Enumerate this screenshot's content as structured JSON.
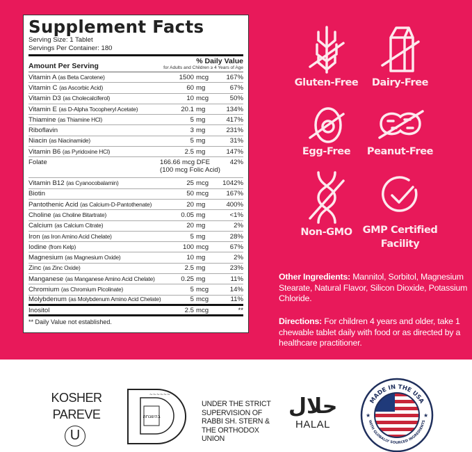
{
  "label": {
    "title": "Supplement Facts",
    "serving_size": "Serving Size: 1 Tablet",
    "servings_per_container": "Servings Per Container: 180",
    "amount_header": "Amount Per Serving",
    "dv_header": "% Daily Value",
    "dv_sub": "for Adults and Children ≥ 4 Years of Age",
    "rows": [
      {
        "name": "Vitamin A",
        "source": "(as Beta Carotene)",
        "amount": "1500",
        "unit": "mcg",
        "dv": "167%"
      },
      {
        "name": "Vitamin C",
        "source": "(as Ascorbic Acid)",
        "amount": "60",
        "unit": "mg",
        "dv": "67%"
      },
      {
        "name": "Vitamin D3",
        "source": "(as Cholecalciferol)",
        "amount": "10",
        "unit": "mcg",
        "dv": "50%"
      },
      {
        "name": "Vitamin E",
        "source": "(as D-Alpha Tocopheryl Acetate)",
        "amount": "20.1",
        "unit": "mg",
        "dv": "134%"
      },
      {
        "name": "Thiamine",
        "source": "(as Thiamine HCl)",
        "amount": "5",
        "unit": "mg",
        "dv": "417%"
      },
      {
        "name": "Riboflavin",
        "source": "",
        "amount": "3",
        "unit": "mg",
        "dv": "231%"
      },
      {
        "name": "Niacin",
        "source": "(as Niacinamide)",
        "amount": "5",
        "unit": "mg",
        "dv": "31%"
      },
      {
        "name": "Vitamin B6",
        "source": "(as Pyridoxine HCl)",
        "amount": "2.5",
        "unit": "mg",
        "dv": "147%"
      },
      {
        "name": "Folate",
        "source": "",
        "amount": "166.66",
        "unit": "mcg DFE",
        "unit2": "(100 mcg Folic Acid)",
        "dv": "42%"
      },
      {
        "name": "Vitamin B12",
        "source": "(as Cyanocobalamin)",
        "amount": "25",
        "unit": "mcg",
        "dv": "1042%"
      },
      {
        "name": "Biotin",
        "source": "",
        "amount": "50",
        "unit": "mcg",
        "dv": "167%"
      },
      {
        "name": "Pantothenic Acid",
        "source": "(as Calcium-D-Pantothenate)",
        "amount": "20",
        "unit": "mg",
        "dv": "400%"
      },
      {
        "name": "Choline",
        "source": "(as Choline Bitartrate)",
        "amount": "0.05",
        "unit": "mg",
        "dv": "<1%"
      },
      {
        "name": "Calcium",
        "source": "(as Calcium Citrate)",
        "amount": "20",
        "unit": "mg",
        "dv": "2%"
      },
      {
        "name": "Iron",
        "source": "(as Iron Amino Acid Chelate)",
        "amount": "5",
        "unit": "mg",
        "dv": "28%"
      },
      {
        "name": "Iodine",
        "source": "(from Kelp)",
        "amount": "100",
        "unit": "mcg",
        "dv": "67%"
      },
      {
        "name": "Magnesium",
        "source": "(as Magnesium Oxide)",
        "amount": "10",
        "unit": "mg",
        "dv": "2%"
      },
      {
        "name": "Zinc",
        "source": "(as Zinc Oxide)",
        "amount": "2.5",
        "unit": "mg",
        "dv": "23%"
      },
      {
        "name": "Manganese",
        "source": "(as Manganese Amino Acid Chelate)",
        "amount": "0.25",
        "unit": "mg",
        "dv": "11%"
      },
      {
        "name": "Chromium",
        "source": "(as Chromium Picolinate)",
        "amount": "5",
        "unit": "mcg",
        "dv": "14%"
      },
      {
        "name": "Molybdenum",
        "source": "(as Molybdenum Amino Acid Chelate)",
        "amount": "5",
        "unit": "mcg",
        "dv": "11%"
      },
      {
        "name": "Inositol",
        "source": "",
        "amount": "2.5",
        "unit": "mcg",
        "dv": "**"
      }
    ],
    "footnote": "** Daily Value not established."
  },
  "badges": [
    {
      "label": "Gluten-Free",
      "icon": "wheat-crossed-icon"
    },
    {
      "label": "Dairy-Free",
      "icon": "milk-carton-crossed-icon"
    },
    {
      "label": "Egg-Free",
      "icon": "egg-crossed-icon"
    },
    {
      "label": "Peanut-Free",
      "icon": "peanut-crossed-icon"
    },
    {
      "label": "Non-GMO",
      "icon": "dna-crossed-icon"
    },
    {
      "label": "GMP Certified",
      "label2": "Facility",
      "icon": "check-circle-icon"
    }
  ],
  "other_ingredients": {
    "heading": "Other Ingredients:",
    "text": " Mannitol, Sorbitol, Magnesium Stearate, Natural Flavor, Silicon Dioxide, Potassium Chloride."
  },
  "directions": {
    "heading": "Directions:",
    "text": " For children 4 years and older, take 1 chewable tablet daily with food or as directed by a healthcare practitioner."
  },
  "certs": {
    "kosher_line1": "KOSHER",
    "kosher_line2": "PAREVE",
    "ou_symbol": "U",
    "d_logo_text": "בהשגחה",
    "supervision": [
      "UNDER THE STRICT",
      "SUPERVISION OF",
      "RABBI SH. STERN &",
      "THE ORTHODOX",
      "UNION"
    ],
    "halal_arabic": "حلال",
    "halal": "HALAL",
    "usa_top": "MADE IN THE USA",
    "usa_bottom": "WITH GLOBALLY SOURCED INGREDIENTS"
  },
  "colors": {
    "brand_pink": "#e8195a",
    "icon_tint": "#fde9ee"
  }
}
